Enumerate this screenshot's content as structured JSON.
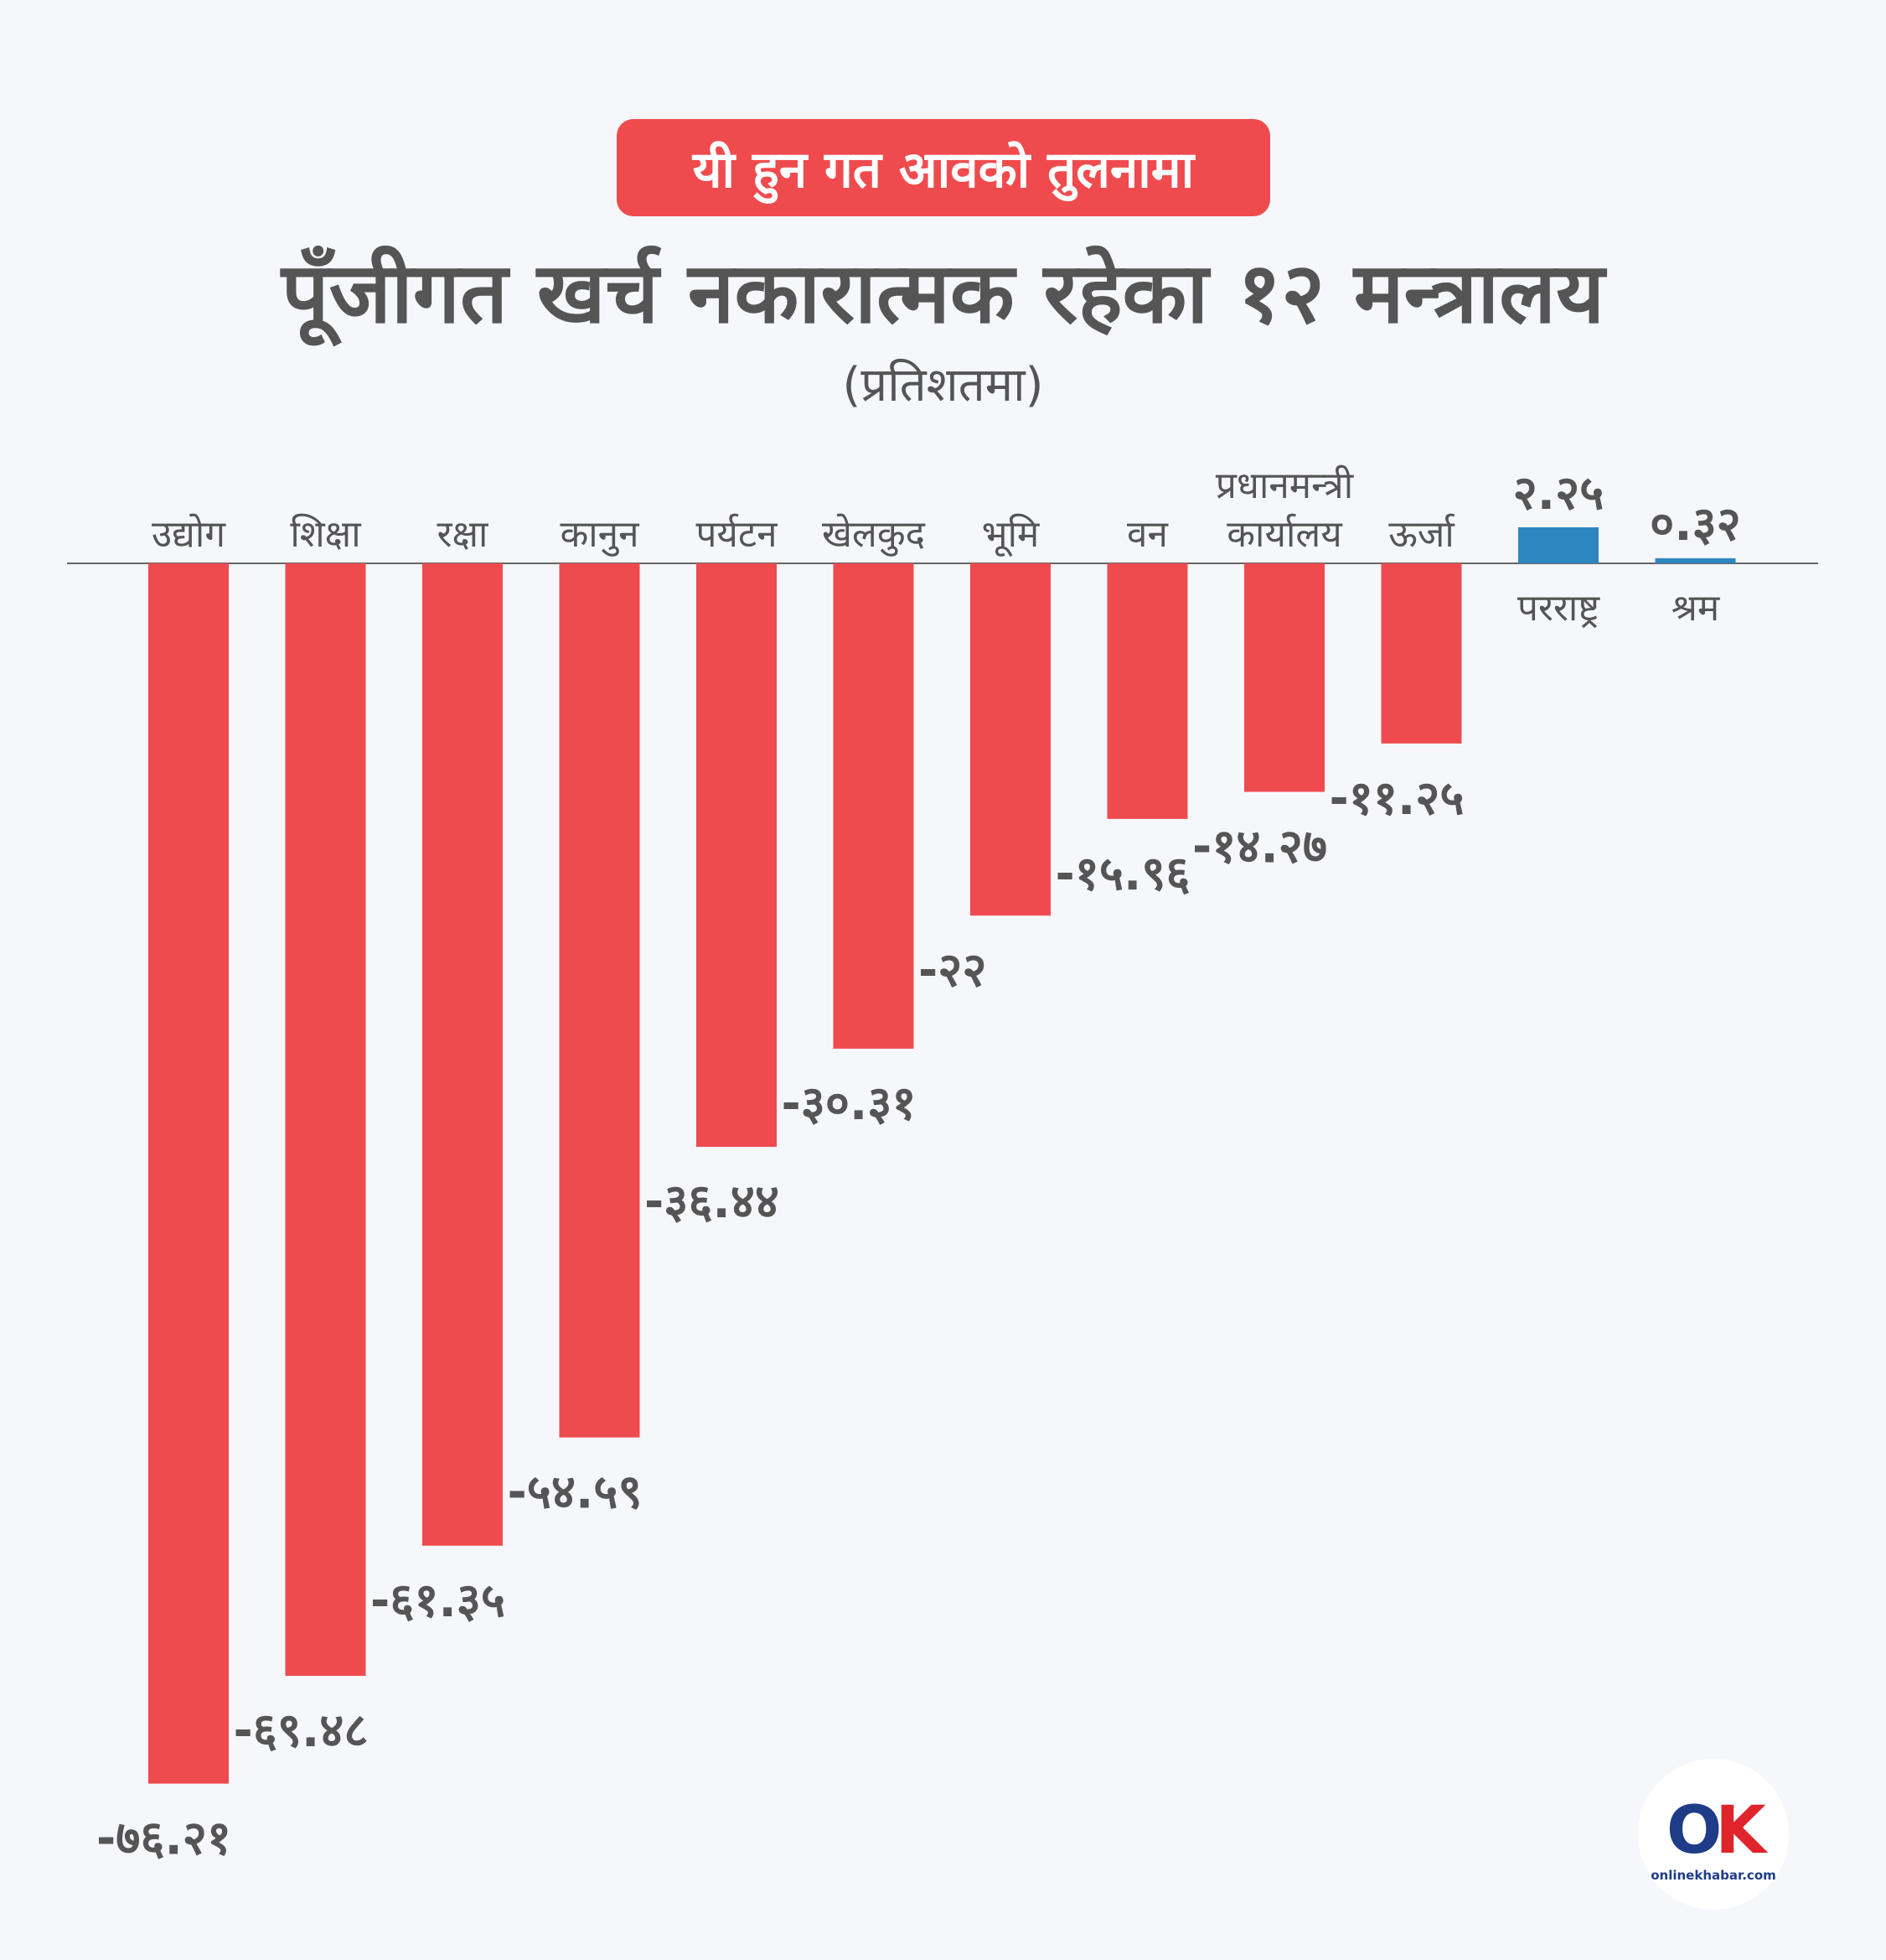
{
  "header": {
    "badge": "यी हुन गत आवको तुलनामा",
    "title": "पूँजीगत खर्च नकारात्मक रहेका १२ मन्त्रालय",
    "subtitle": "(प्रतिशतमा)"
  },
  "logo": {
    "text": "onlinekhabar.com"
  },
  "colors": {
    "negative": "#ef4b4e",
    "positive": "#2e86c1",
    "text": "#555555",
    "axis": "#666666"
  },
  "chart_data": {
    "type": "bar",
    "title": "पूँजीगत खर्च नकारात्मक रहेका १२ मन्त्रालय",
    "unit": "(प्रतिशतमा)",
    "categories": [
      "उद्योग",
      "शिक्षा",
      "रक्षा",
      "कानुन",
      "पर्यटन",
      "खेलकुद",
      "भूमि",
      "वन",
      "प्रधानमन्त्री कार्यालय",
      "ऊर्जा",
      "परराष्ट्र",
      "श्रम"
    ],
    "category_lines": [
      [
        "उद्योग"
      ],
      [
        "शिक्षा"
      ],
      [
        "रक्षा"
      ],
      [
        "कानुन"
      ],
      [
        "पर्यटन"
      ],
      [
        "खेलकुद"
      ],
      [
        "भूमि"
      ],
      [
        "वन"
      ],
      [
        "प्रधानमन्त्री",
        "कार्यालय"
      ],
      [
        "ऊर्जा"
      ],
      [
        "परराष्ट्र"
      ],
      [
        "श्रम"
      ]
    ],
    "values": [
      -76.21,
      -69.48,
      -61.35,
      -54.59,
      -36.44,
      -30.31,
      -22,
      -15.96,
      -14.27,
      -11.25,
      2.25,
      0.32
    ],
    "value_labels": [
      "-७६.२१",
      "-६९.४८",
      "-६१.३५",
      "-५४.५९",
      "-३६.४४",
      "-३०.३१",
      "-२२",
      "-१५.९६",
      "-१४.२७",
      "-११.२५",
      "२.२५",
      "०.३२"
    ],
    "ylim": [
      -80,
      5
    ]
  }
}
